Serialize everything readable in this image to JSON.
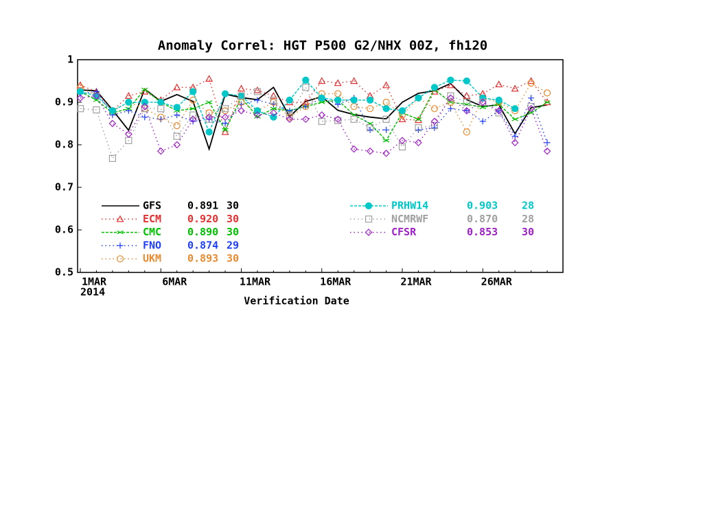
{
  "chart_data": {
    "type": "line",
    "title": "Anomaly Correl: HGT P500 G2/NHX 00Z, fh120",
    "x_label": "Verification Date",
    "year_label": "2014",
    "categories": [
      "1MAR",
      null,
      null,
      null,
      null,
      "6MAR",
      null,
      null,
      null,
      null,
      "11MAR",
      null,
      null,
      null,
      null,
      "16MAR",
      null,
      null,
      null,
      null,
      "21MAR",
      null,
      null,
      null,
      null,
      "26MAR",
      null,
      null,
      null,
      null
    ],
    "ylim": [
      0.5,
      1
    ],
    "yticks": [
      0.5,
      0.6,
      0.7,
      0.8,
      0.9,
      1
    ],
    "series": [
      {
        "name": "GFS",
        "mean": "0.891",
        "count": "30",
        "color": "#000000",
        "line": "solid",
        "marker": "none",
        "values": [
          0.929,
          0.927,
          0.882,
          0.834,
          0.931,
          0.902,
          0.918,
          0.902,
          0.79,
          0.919,
          0.911,
          0.906,
          0.935,
          0.866,
          0.902,
          0.913,
          0.881,
          0.871,
          0.865,
          0.861,
          0.9,
          0.921,
          0.927,
          0.944,
          0.906,
          0.89,
          0.894,
          0.826,
          0.887,
          0.894
        ]
      },
      {
        "name": "ECM",
        "mean": "0.920",
        "count": "30",
        "color": "#e83030",
        "line": "dotted",
        "marker": "triangle",
        "values": [
          0.94,
          0.925,
          0.88,
          0.915,
          0.925,
          0.905,
          0.935,
          0.935,
          0.955,
          0.83,
          0.932,
          0.928,
          0.915,
          0.9,
          0.9,
          0.95,
          0.945,
          0.95,
          0.915,
          0.94,
          0.86,
          0.858,
          0.925,
          0.94,
          0.915,
          0.92,
          0.942,
          0.932,
          0.95,
          0.9
        ]
      },
      {
        "name": "CMC",
        "mean": "0.890",
        "count": "30",
        "color": "#00c000",
        "line": "dashed",
        "marker": "x",
        "values": [
          0.925,
          0.905,
          0.875,
          0.885,
          0.93,
          0.9,
          0.88,
          0.885,
          0.9,
          0.835,
          0.91,
          0.866,
          0.885,
          0.88,
          0.89,
          0.9,
          0.905,
          0.87,
          0.85,
          0.81,
          0.875,
          0.86,
          0.93,
          0.9,
          0.895,
          0.888,
          0.895,
          0.86,
          0.875,
          0.9
        ]
      },
      {
        "name": "FNO",
        "mean": "0.874",
        "count": "29",
        "color": "#2040ff",
        "line": "dotted",
        "marker": "plus",
        "values": [
          0.92,
          0.925,
          0.87,
          0.88,
          0.865,
          0.86,
          0.87,
          0.855,
          0.86,
          0.85,
          0.895,
          0.905,
          0.895,
          0.88,
          0.89,
          0.91,
          0.895,
          0.91,
          0.835,
          0.835,
          null,
          0.835,
          0.84,
          0.885,
          0.88,
          0.855,
          0.88,
          0.82,
          0.91,
          0.805
        ]
      },
      {
        "name": "UKM",
        "mean": "0.893",
        "count": "30",
        "color": "#e88a30",
        "line": "dotted",
        "marker": "circle",
        "values": [
          0.935,
          0.915,
          0.88,
          0.9,
          0.885,
          0.865,
          0.845,
          0.905,
          0.875,
          0.88,
          0.9,
          0.88,
          0.9,
          0.865,
          0.89,
          0.92,
          0.92,
          0.89,
          0.885,
          0.9,
          0.87,
          0.91,
          0.885,
          0.9,
          0.83,
          0.91,
          0.9,
          0.88,
          0.945,
          0.922
        ]
      },
      {
        "name": "PRHW14",
        "mean": "0.903",
        "count": "28",
        "color": "#00c8c8",
        "line": "dashed",
        "marker": "filled-circle",
        "values": [
          0.925,
          0.915,
          0.88,
          0.9,
          0.9,
          0.9,
          0.888,
          0.925,
          0.83,
          0.92,
          0.915,
          0.88,
          0.865,
          0.905,
          0.952,
          0.91,
          0.905,
          0.905,
          0.905,
          0.885,
          0.88,
          0.91,
          0.935,
          0.952,
          0.95,
          0.91,
          0.905,
          0.885,
          null,
          null
        ]
      },
      {
        "name": "NCMRWF",
        "mean": "0.870",
        "count": "28",
        "color": "#a0a0a0",
        "line": "dotted",
        "marker": "square",
        "values": [
          0.885,
          0.882,
          0.768,
          0.81,
          0.885,
          0.885,
          0.82,
          0.87,
          0.86,
          0.885,
          0.915,
          0.925,
          0.905,
          0.87,
          0.935,
          0.855,
          0.857,
          0.86,
          0.84,
          0.86,
          0.795,
          0.84,
          0.845,
          0.915,
          0.9,
          0.9,
          0.875,
          null,
          0.89,
          null
        ]
      },
      {
        "name": "CFSR",
        "mean": "0.853",
        "count": "30",
        "color": "#a020c8",
        "line": "dotted",
        "marker": "diamond",
        "values": [
          0.91,
          0.915,
          0.85,
          0.825,
          0.89,
          0.785,
          0.8,
          0.86,
          0.865,
          0.865,
          0.88,
          0.87,
          0.875,
          0.86,
          0.86,
          0.87,
          0.86,
          0.79,
          0.785,
          0.78,
          0.81,
          0.805,
          0.855,
          0.91,
          0.88,
          0.9,
          0.88,
          0.805,
          0.885,
          0.785
        ]
      }
    ]
  }
}
